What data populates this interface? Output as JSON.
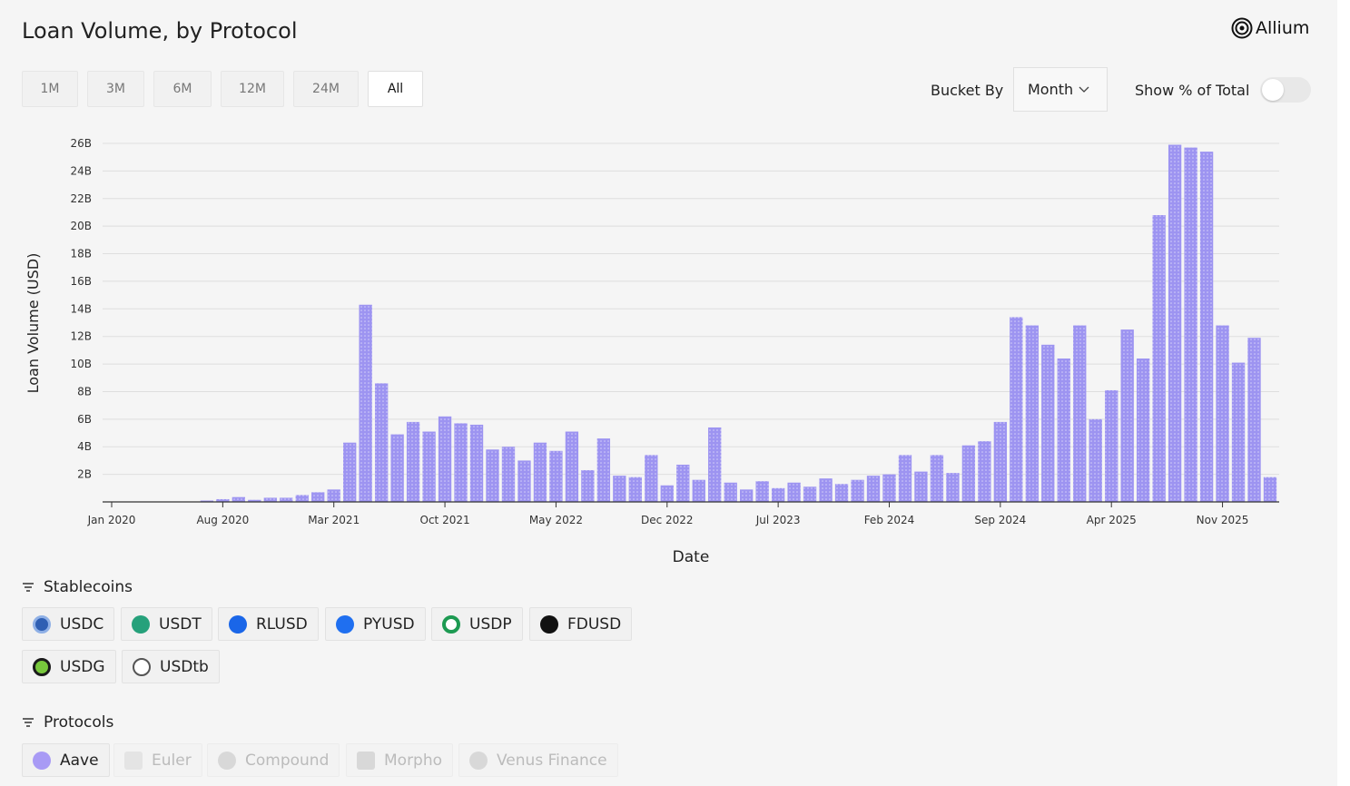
{
  "header": {
    "title": "Loan Volume, by Protocol",
    "brand": "Allium"
  },
  "controls": {
    "ranges": [
      "1M",
      "3M",
      "6M",
      "12M",
      "24M",
      "All"
    ],
    "active_range": "All",
    "bucket_label": "Bucket By",
    "bucket_value": "Month",
    "percent_label": "Show % of Total"
  },
  "chart_data": {
    "type": "bar",
    "y_label": "Loan Volume (USD)",
    "x_label": "Date",
    "color": "#9d94f1",
    "categories": [
      "Jan 2020",
      null,
      null,
      null,
      null,
      null,
      null,
      "Aug 2020",
      null,
      null,
      null,
      null,
      null,
      null,
      "Mar 2021",
      null,
      null,
      null,
      null,
      null,
      null,
      "Oct 2021",
      null,
      null,
      null,
      null,
      null,
      null,
      "May 2022",
      null,
      null,
      null,
      null,
      null,
      null,
      "Dec 2022",
      null,
      null,
      null,
      null,
      null,
      null,
      "Jul 2023",
      null,
      null,
      null,
      null,
      null,
      null,
      "Feb 2024",
      null,
      null,
      null,
      null,
      null,
      null,
      "Sep 2024",
      null,
      null,
      null,
      null,
      null,
      null,
      "Apr 2025",
      null,
      null,
      null,
      null,
      null,
      null,
      "Nov 2025",
      null,
      null,
      null
    ],
    "values": [
      0,
      0,
      0,
      0,
      0,
      0,
      0.1,
      0.2,
      0.35,
      0.15,
      0.3,
      0.3,
      0.5,
      0.7,
      0.9,
      4.3,
      14.3,
      8.6,
      4.9,
      5.8,
      5.1,
      6.2,
      5.7,
      5.6,
      3.8,
      4.0,
      3.0,
      4.3,
      3.7,
      5.1,
      2.3,
      4.6,
      1.9,
      1.8,
      3.4,
      1.2,
      2.7,
      1.6,
      5.4,
      1.4,
      0.9,
      1.5,
      1.0,
      1.4,
      1.1,
      1.7,
      1.3,
      1.6,
      1.9,
      2.0,
      3.4,
      2.2,
      3.4,
      2.1,
      4.1,
      4.4,
      5.8,
      13.4,
      12.8,
      11.4,
      10.4,
      12.8,
      6.0,
      8.1,
      12.5,
      10.4,
      20.8,
      25.9,
      25.7,
      25.4,
      12.8,
      10.1,
      11.9,
      1.8
    ],
    "ylim": [
      0,
      26
    ],
    "yticks": [
      {
        "value": 2,
        "label": "2B"
      },
      {
        "value": 4,
        "label": "4B"
      },
      {
        "value": 6,
        "label": "6B"
      },
      {
        "value": 8,
        "label": "8B"
      },
      {
        "value": 10,
        "label": "10B"
      },
      {
        "value": 12,
        "label": "12B"
      },
      {
        "value": 14,
        "label": "14B"
      },
      {
        "value": 16,
        "label": "16B"
      },
      {
        "value": 18,
        "label": "18B"
      },
      {
        "value": 20,
        "label": "20B"
      },
      {
        "value": 22,
        "label": "22B"
      },
      {
        "value": 24,
        "label": "24B"
      },
      {
        "value": 26,
        "label": "26B"
      }
    ],
    "grid": true
  },
  "filters": {
    "stablecoins": {
      "title": "Stablecoins",
      "items": [
        "USDC",
        "USDT",
        "RLUSD",
        "PYUSD",
        "USDP",
        "FDUSD",
        "USDG",
        "USDtb"
      ]
    },
    "protocols": {
      "title": "Protocols",
      "items": [
        "Aave",
        "Euler",
        "Compound",
        "Morpho",
        "Venus Finance"
      ]
    }
  }
}
